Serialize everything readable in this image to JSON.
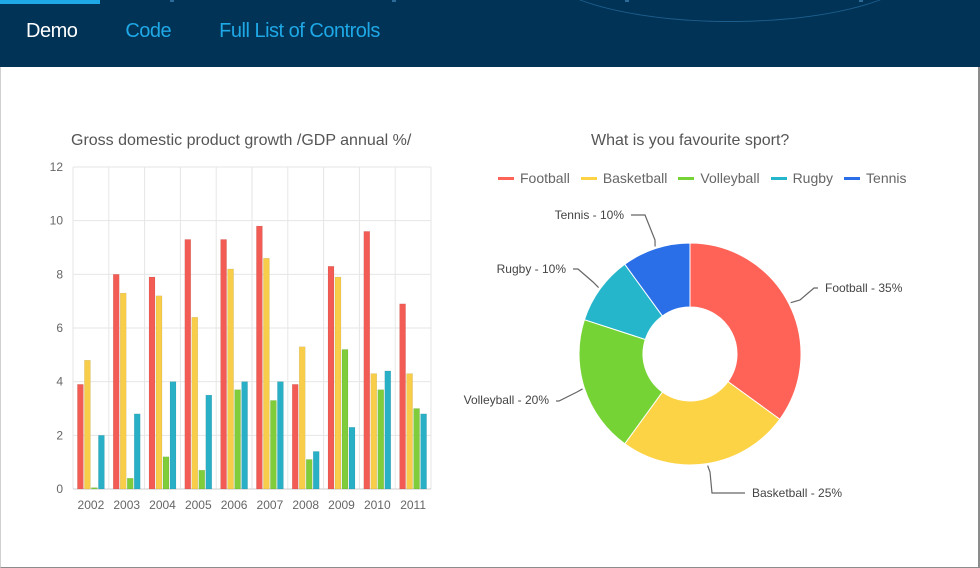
{
  "nav": {
    "items": [
      {
        "label": "Demo",
        "active": true
      },
      {
        "label": "Code",
        "active": false
      },
      {
        "label": "Full List of Controls",
        "active": false
      }
    ]
  },
  "colors": {
    "header_bg": "#003356",
    "nav_link": "#1fa8e6",
    "nav_active": "#ffffff"
  },
  "bar_chart": {
    "title": "Gross domestic product growth /GDP annual %/"
  },
  "pie_chart": {
    "title": "What is you favourite sport?"
  },
  "chart_data": [
    {
      "type": "bar",
      "title": "Gross domestic product growth /GDP annual %/",
      "categories": [
        "2002",
        "2003",
        "2004",
        "2005",
        "2006",
        "2007",
        "2008",
        "2009",
        "2010",
        "2011"
      ],
      "ylim": [
        0,
        12
      ],
      "yticks": [
        0,
        2,
        4,
        6,
        8,
        10,
        12
      ],
      "grid": true,
      "series": [
        {
          "color": "#f25c54",
          "values": [
            3.9,
            8.0,
            7.9,
            9.3,
            9.3,
            9.8,
            3.9,
            8.3,
            9.6,
            6.9
          ]
        },
        {
          "color": "#f7cd49",
          "values": [
            4.8,
            7.3,
            7.2,
            6.4,
            8.2,
            8.6,
            5.3,
            7.9,
            4.3,
            4.3
          ]
        },
        {
          "color": "#7fcd3a",
          "values": [
            0.05,
            0.4,
            1.2,
            0.7,
            3.7,
            3.3,
            1.1,
            5.2,
            3.7,
            3.0
          ]
        },
        {
          "color": "#29b0c6",
          "values": [
            2.0,
            2.8,
            4.0,
            3.5,
            4.0,
            4.0,
            1.4,
            2.3,
            4.4,
            2.8
          ]
        }
      ]
    },
    {
      "type": "pie",
      "subtype": "donut",
      "title": "What is you favourite sport?",
      "legend_position": "top",
      "slices": [
        {
          "name": "Football",
          "value": 35,
          "label": "Football - 35%",
          "color": "#ff6257"
        },
        {
          "name": "Basketball",
          "value": 25,
          "label": "Basketball - 25%",
          "color": "#fdd346"
        },
        {
          "name": "Volleyball",
          "value": 20,
          "label": "Volleyball - 20%",
          "color": "#76d335"
        },
        {
          "name": "Rugby",
          "value": 10,
          "label": "Rugby - 10%",
          "color": "#26b6cc"
        },
        {
          "name": "Tennis",
          "value": 10,
          "label": "Tennis - 10%",
          "color": "#2a6ee8"
        }
      ]
    }
  ]
}
